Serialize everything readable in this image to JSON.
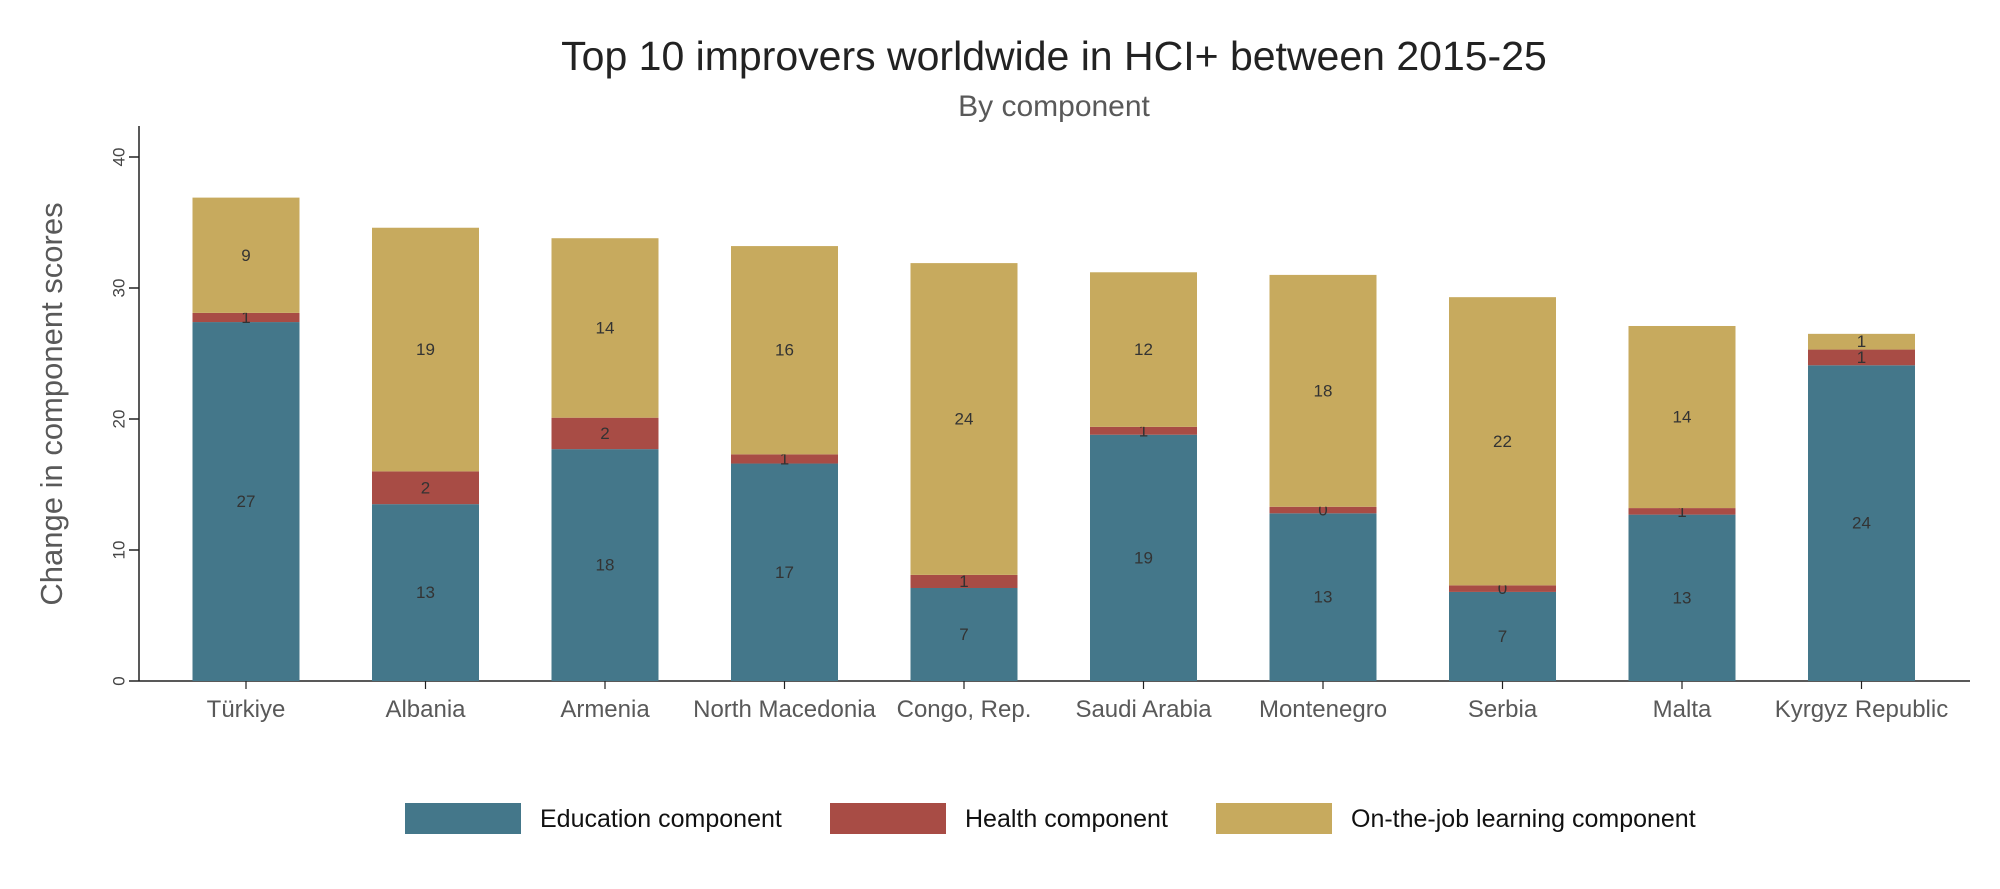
{
  "chart_data": {
    "type": "bar",
    "stacked": true,
    "title": "Top 10 improvers worldwide in HCI+ between 2015-25",
    "subtitle": "By component",
    "xlabel": "",
    "ylabel": "Change in component scores",
    "ylim": [
      0,
      42
    ],
    "yticks": [
      "0",
      "10",
      "20",
      "30",
      "40"
    ],
    "grid": false,
    "legend_position": "bottom",
    "categories": [
      "Türkiye",
      "Albania",
      "Armenia",
      "North Macedonia",
      "Congo, Rep.",
      "Saudi Arabia",
      "Montenegro",
      "Serbia",
      "Malta",
      "Kyrgyz Republic"
    ],
    "series": [
      {
        "name": "Education component",
        "color": "#44778A",
        "values": [
          27.4,
          13.5,
          17.7,
          16.6,
          7.1,
          18.8,
          12.8,
          6.8,
          12.7,
          24.1
        ],
        "labels": [
          "27",
          "13",
          "18",
          "17",
          "7",
          "19",
          "13",
          "7",
          "13",
          "24"
        ]
      },
      {
        "name": "Health component",
        "color": "#A84C45",
        "values": [
          0.7,
          2.5,
          2.4,
          0.7,
          1.0,
          0.6,
          0.5,
          0.5,
          0.5,
          1.2
        ],
        "labels": [
          "1",
          "2",
          "2",
          "1",
          "1",
          "1",
          "0",
          "0",
          "1",
          "1"
        ]
      },
      {
        "name": "On-the-job learning component",
        "color": "#C7AA5E",
        "values": [
          8.8,
          18.6,
          13.7,
          15.9,
          23.8,
          11.8,
          17.7,
          22.0,
          13.9,
          1.2
        ],
        "labels": [
          "9",
          "19",
          "14",
          "16",
          "24",
          "12",
          "18",
          "22",
          "14",
          "1"
        ]
      }
    ]
  }
}
